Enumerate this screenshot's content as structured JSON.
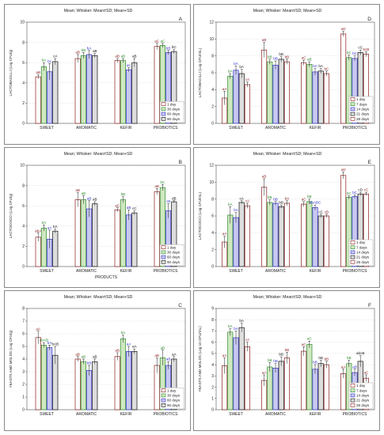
{
  "colors": {
    "1 day": "#8b1c1c",
    "30 days": "#2e8b2e",
    "60 days": "#3333cc",
    "90 days": "#111111",
    "7 days": "#2e8b2e",
    "14 days": "#3333cc",
    "21 days": "#111111",
    "28 days": "#8b1c1c"
  },
  "fills": {
    "1 day": "#ffffff",
    "30 days": "#cfe8c0",
    "60 days": "#c8c8f0",
    "90 days": "#dddddd",
    "7 days": "#cfe8c0",
    "14 days": "#c8c8f0",
    "21 days": "#dddddd",
    "28 days": "#ffffff"
  },
  "chart_data": [
    {
      "type": "bar",
      "title": "Mean; Whisker: Mean±SD; Mean+SD",
      "panel_letter": "A",
      "ylabel": "LACTOBACILLI (Log CFU/g)",
      "xlabel": "",
      "ylim": [
        0,
        10
      ],
      "yticks": [
        0,
        2,
        4,
        6,
        8,
        10
      ],
      "grid": true,
      "legend": "bottom-right",
      "categories": [
        "SWEET",
        "AROMATIC",
        "KEFIR",
        "PROBIOTICS"
      ],
      "series": [
        {
          "name": "1 day",
          "values": [
            4.6,
            6.4,
            6.2,
            7.6
          ],
          "sd": [
            0.2,
            0.4,
            0.2,
            0.3
          ],
          "labels": [
            "aB",
            "aB",
            "aB",
            "aC"
          ]
        },
        {
          "name": "30 days",
          "values": [
            5.6,
            6.7,
            6.2,
            7.7
          ],
          "sd": [
            0.4,
            0.3,
            0.2,
            0.2
          ],
          "labels": [
            "bA",
            "bB",
            "aB",
            "aC"
          ]
        },
        {
          "name": "60 days",
          "values": [
            5.1,
            6.8,
            5.3,
            7.0
          ],
          "sd": [
            0.8,
            0.4,
            0.2,
            0.2
          ],
          "labels": [
            "bc",
            "bA",
            "aC",
            "bB"
          ]
        },
        {
          "name": "90 days",
          "values": [
            6.1,
            6.7,
            6.0,
            7.1
          ],
          "sd": [
            0.3,
            0.2,
            0.4,
            0.2
          ],
          "labels": [
            "cA",
            "aB",
            "aB",
            "bC"
          ]
        }
      ]
    },
    {
      "type": "bar",
      "title": "Mean; Whisker: Mean±SD; Mean+SD",
      "panel_letter": "D",
      "ylabel": "LACTOBACILLI (Log CFU/mL)",
      "xlabel": "",
      "ylim": [
        0,
        12
      ],
      "yticks": [
        0,
        2,
        4,
        6,
        8,
        10,
        12
      ],
      "grid": true,
      "legend": "bottom-right",
      "categories": [
        "SWEET",
        "AROMATIC",
        "KEFIR",
        "PROBIOTICS"
      ],
      "series": [
        {
          "name": "1 day",
          "values": [
            3.0,
            8.7,
            7.2,
            10.6
          ],
          "sd": [
            0.8,
            0.9,
            0.3,
            0.3
          ],
          "labels": [
            "aA",
            "aB",
            "aC",
            "aD"
          ]
        },
        {
          "name": "7 days",
          "values": [
            5.6,
            7.3,
            7.0,
            7.8
          ],
          "sd": [
            0.3,
            0.3,
            0.3,
            0.3
          ],
          "labels": [
            "bA",
            "bB",
            "aB",
            "bC"
          ]
        },
        {
          "name": "14 days",
          "values": [
            6.3,
            6.9,
            6.1,
            7.7
          ],
          "sd": [
            0.5,
            0.5,
            0.4,
            0.3
          ],
          "labels": [
            "bA",
            "bB",
            "bA",
            "bC"
          ]
        },
        {
          "name": "21 days",
          "values": [
            5.9,
            7.6,
            6.2,
            8.4
          ],
          "sd": [
            0.5,
            0.3,
            0.3,
            0.3
          ],
          "labels": [
            "bA",
            "bB",
            "bA",
            "cC"
          ]
        },
        {
          "name": "28 days",
          "values": [
            4.6,
            7.3,
            5.9,
            8.2
          ],
          "sd": [
            0.3,
            0.3,
            0.3,
            0.3
          ],
          "labels": [
            "cA",
            "bB",
            "bC",
            "bcB"
          ]
        }
      ]
    },
    {
      "type": "bar",
      "title": "Mean; Whisker: Mean±SD; Mean+SD",
      "panel_letter": "B",
      "ylabel": "LACTOCOCCI (Log CFU/g)",
      "xlabel": "PRODUCTS",
      "ylim": [
        0,
        10
      ],
      "yticks": [
        0,
        2,
        4,
        6,
        8,
        10
      ],
      "grid": true,
      "legend": "bottom-right",
      "categories": [
        "SWEET",
        "AROMATIC",
        "KEFIR",
        "PROBIOTICS"
      ],
      "series": [
        {
          "name": "1 day",
          "values": [
            2.9,
            6.6,
            5.6,
            7.4
          ],
          "sd": [
            0.4,
            0.7,
            0.2,
            0.3
          ],
          "labels": [
            "abA",
            "aB",
            "aC",
            "aB"
          ]
        },
        {
          "name": "30 days",
          "values": [
            3.8,
            6.6,
            6.6,
            7.8
          ],
          "sd": [
            0.3,
            0.4,
            0.3,
            0.3
          ],
          "labels": [
            "bA",
            "aB",
            "bB",
            "bC"
          ]
        },
        {
          "name": "60 days",
          "values": [
            2.7,
            5.7,
            5.1,
            5.5
          ],
          "sd": [
            0.9,
            0.8,
            0.5,
            0.7
          ],
          "labels": [
            "aA",
            "aB",
            "aB",
            "cB"
          ]
        },
        {
          "name": "90 days",
          "values": [
            3.5,
            6.2,
            5.3,
            6.4
          ],
          "sd": [
            0.2,
            0.2,
            0.2,
            0.1
          ],
          "labels": [
            "bA",
            "aB",
            "cC",
            "dB"
          ]
        }
      ]
    },
    {
      "type": "bar",
      "title": "Mean; Whisker: Mean±SD; Mean+SD",
      "panel_letter": "E",
      "ylabel": "LACTOCOCCI (Log CFU/mL)",
      "xlabel": "",
      "ylim": [
        0,
        12
      ],
      "yticks": [
        0,
        2,
        4,
        6,
        8,
        10,
        12
      ],
      "grid": true,
      "legend": "bottom-right",
      "categories": [
        "SWEET",
        "AROMATIC",
        "KEFIR",
        "PROBIOTICS"
      ],
      "series": [
        {
          "name": "1 day",
          "values": [
            2.9,
            9.4,
            7.4,
            10.8
          ],
          "sd": [
            0.7,
            1.0,
            0.3,
            0.4
          ],
          "labels": [
            "aA",
            "aB",
            "aC",
            "aD"
          ]
        },
        {
          "name": "7 days",
          "values": [
            6.1,
            7.6,
            7.7,
            8.2
          ],
          "sd": [
            1.0,
            0.3,
            0.3,
            0.2
          ],
          "labels": [
            "bA",
            "bB",
            "bB",
            "bC"
          ]
        },
        {
          "name": "14 days",
          "values": [
            5.8,
            7.5,
            7.0,
            8.3
          ],
          "sd": [
            0.6,
            0.2,
            0.3,
            0.2
          ],
          "labels": [
            "bA",
            "bB",
            "abABC",
            "bC"
          ]
        },
        {
          "name": "21 days",
          "values": [
            7.6,
            7.1,
            6.0,
            8.6
          ],
          "sd": [
            0.2,
            0.2,
            0.2,
            0.2
          ],
          "labels": [
            "cA",
            "bB",
            "cC",
            "cD"
          ]
        },
        {
          "name": "28 days",
          "values": [
            7.2,
            7.5,
            6.0,
            8.6
          ],
          "sd": [
            0.3,
            0.3,
            0.2,
            0.2
          ],
          "labels": [
            "cA",
            "bA",
            "cB",
            "cC"
          ]
        }
      ]
    },
    {
      "type": "bar",
      "title": "Mean; Whisker: Mean±SD; Mean+SD",
      "panel_letter": "C",
      "ylabel": "YEASTS AND MOLDS (Log CFU/g)",
      "xlabel": "",
      "ylim": [
        0,
        8
      ],
      "yticks": [
        0,
        1,
        2,
        3,
        4,
        5,
        6,
        7,
        8
      ],
      "grid": true,
      "legend": "bottom-right",
      "categories": [
        "SWEET",
        "AROMATIC",
        "KEFIR",
        "PROBIOTICS"
      ],
      "series": [
        {
          "name": "1 day",
          "values": [
            5.7,
            4.0,
            4.2,
            3.5
          ],
          "sd": [
            0.5,
            0.2,
            0.3,
            0.6
          ],
          "labels": [
            "aA",
            "aB",
            "aB",
            "aB"
          ]
        },
        {
          "name": "30 days",
          "values": [
            5.1,
            3.8,
            5.6,
            4.1
          ],
          "sd": [
            0.2,
            0.2,
            0.3,
            0.6
          ],
          "labels": [
            "abAB",
            "aB",
            "bA",
            "aB"
          ]
        },
        {
          "name": "60 days",
          "values": [
            4.9,
            3.1,
            4.6,
            3.5
          ],
          "sd": [
            0.2,
            0.4,
            0.4,
            0.3
          ],
          "labels": [
            "bA",
            "bB",
            "aA",
            "aB"
          ]
        },
        {
          "name": "90 days",
          "values": [
            4.3,
            3.8,
            4.6,
            4.0
          ],
          "sd": [
            0.7,
            0.2,
            0.2,
            0.2
          ],
          "labels": [
            "bAB",
            "aB",
            "aA",
            "aA"
          ]
        }
      ]
    },
    {
      "type": "bar",
      "title": "Mean; Whisker: Mean±SD; Mean+SD",
      "panel_letter": "F",
      "ylabel": "YEASTS AND MOLDS (Log 10 CFU/mL)",
      "xlabel": "",
      "ylim": [
        0,
        9
      ],
      "yticks": [
        0,
        1,
        2,
        3,
        4,
        5,
        6,
        7,
        8,
        9
      ],
      "grid": true,
      "legend": "bottom-right",
      "categories": [
        "SWEET",
        "AROMATIC",
        "KEFIR",
        "PROBIOTICS"
      ],
      "series": [
        {
          "name": "1 day",
          "values": [
            3.9,
            2.6,
            5.2,
            3.2
          ],
          "sd": [
            0.7,
            0.5,
            0.4,
            0.4
          ],
          "labels": [
            "aA",
            "aA",
            "aC",
            "aA"
          ]
        },
        {
          "name": "7 days",
          "values": [
            6.9,
            3.8,
            5.8,
            4.1
          ],
          "sd": [
            0.3,
            0.4,
            0.3,
            0.3
          ],
          "labels": [
            "bA",
            "bB",
            "aC",
            "bB"
          ]
        },
        {
          "name": "14 days",
          "values": [
            6.4,
            3.7,
            3.6,
            3.3
          ],
          "sd": [
            0.6,
            0.4,
            0.4,
            0.3
          ],
          "labels": [
            "bA",
            "bB",
            "bB",
            "aB"
          ]
        },
        {
          "name": "21 days",
          "values": [
            7.3,
            4.3,
            4.1,
            4.3
          ],
          "sd": [
            0.4,
            0.4,
            0.3,
            0.5
          ],
          "labels": [
            "bA",
            "bB",
            "bB",
            "abcB"
          ]
        },
        {
          "name": "28 days",
          "values": [
            5.6,
            4.6,
            4.0,
            2.8
          ],
          "sd": [
            0.4,
            0.5,
            0.3,
            0.3
          ],
          "labels": [
            "cA",
            "bB",
            "bB",
            "aC"
          ]
        }
      ]
    }
  ]
}
